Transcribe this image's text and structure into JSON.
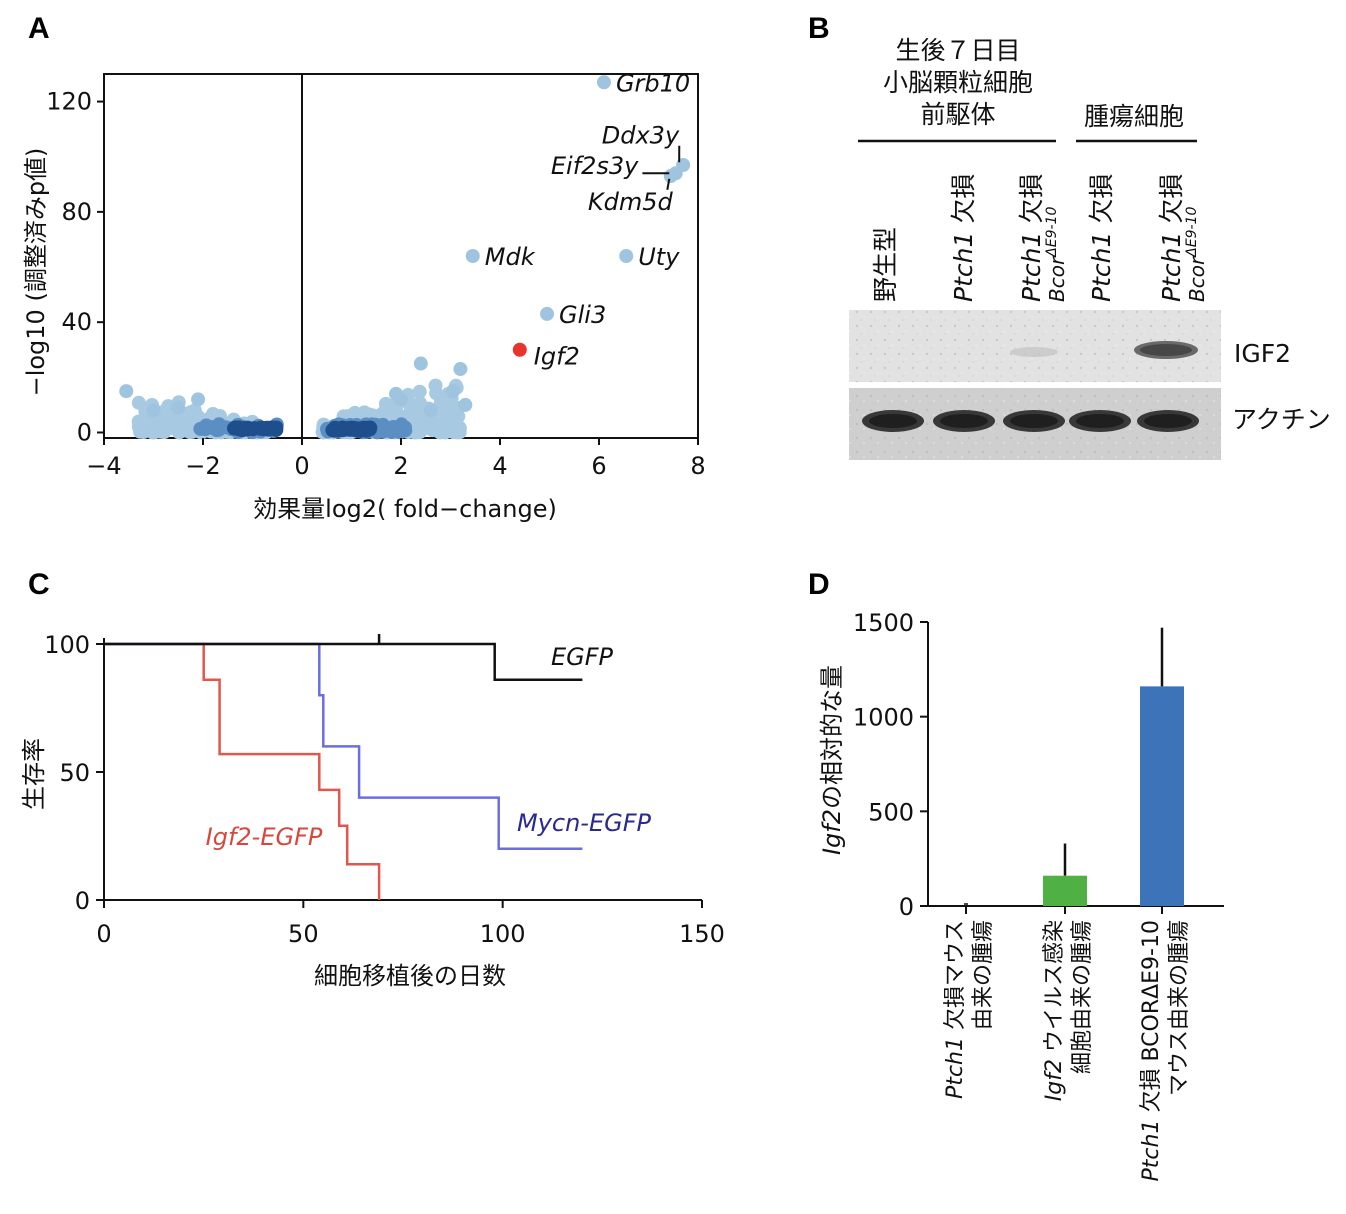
{
  "panels": {
    "A": {
      "letter": "A",
      "chart_data": {
        "type": "scatter",
        "xlabel": "効果量log2( fold−change)",
        "ylabel": "−log10 (調整済みp値)",
        "xlim": [
          -4,
          8.0
        ],
        "ylim": [
          -2,
          130
        ],
        "x_ticks": [
          -4,
          -2,
          0,
          2,
          4,
          6,
          8
        ],
        "x_tick_labels": [
          "−4",
          "−2",
          "0",
          "2",
          "4",
          "6",
          "8"
        ],
        "y_ticks": [
          0,
          40,
          80,
          120
        ],
        "y_tick_labels": [
          "0",
          "40",
          "80",
          "120"
        ],
        "labeled_points": [
          {
            "gene": "Grb10",
            "x": 6.1,
            "y": 127
          },
          {
            "gene": "Ddx3y",
            "x": 7.7,
            "y": 97
          },
          {
            "gene": "Eif2s3y",
            "x": 7.55,
            "y": 94
          },
          {
            "gene": "Kdm5d",
            "x": 7.45,
            "y": 93
          },
          {
            "gene": "Mdk",
            "x": 3.45,
            "y": 64
          },
          {
            "gene": "Uty",
            "x": 6.55,
            "y": 64
          },
          {
            "gene": "Gli3",
            "x": 4.95,
            "y": 43
          },
          {
            "gene": "Igf2",
            "x": 4.4,
            "y": 30,
            "highlight": true
          }
        ],
        "point_color": "#9fc4df",
        "dense_color": "#1f4e8c",
        "highlight_color": "#e8342c"
      }
    },
    "B": {
      "letter": "B",
      "header_group1": [
        "生後７日目",
        "小脳顆粒細胞",
        "前駆体"
      ],
      "header_group2": "腫瘍細胞",
      "lanes": [
        {
          "gene": "",
          "text": "野生型",
          "sup": ""
        },
        {
          "gene": "Ptch1",
          "text": " 欠損",
          "sup": ""
        },
        {
          "gene": "Ptch1",
          "text": " 欠損",
          "sup": "Bcor",
          "sup2": "ΔE9-10"
        },
        {
          "gene": "Ptch1",
          "text": " 欠損",
          "sup": ""
        },
        {
          "gene": "Ptch1",
          "text": " 欠損",
          "sup": "Bcor",
          "sup2": "ΔE9-10"
        }
      ],
      "blots": [
        "IGF2",
        "アクチン"
      ]
    },
    "C": {
      "letter": "C",
      "chart_data": {
        "type": "line",
        "xlabel": "細胞移植後の日数",
        "ylabel": "生存率",
        "xlim": [
          0,
          150
        ],
        "ylim": [
          0,
          100
        ],
        "x_ticks": [
          0,
          50,
          100,
          150
        ],
        "y_ticks": [
          0,
          50,
          100
        ],
        "series": [
          {
            "name": "EGFP",
            "color": "#111111",
            "steps": [
              [
                0,
                100
              ],
              [
                98,
                100
              ],
              [
                98,
                86
              ],
              [
                120,
                86
              ]
            ]
          },
          {
            "name": "Mycn-EGFP",
            "color": "#6a6ee0",
            "steps": [
              [
                0,
                100
              ],
              [
                54,
                100
              ],
              [
                54,
                80
              ],
              [
                55,
                80
              ],
              [
                55,
                60
              ],
              [
                64,
                60
              ],
              [
                64,
                40
              ],
              [
                99,
                40
              ],
              [
                99,
                20
              ],
              [
                120,
                20
              ]
            ]
          },
          {
            "name": "Igf2-EGFP",
            "color": "#e2574c",
            "steps": [
              [
                0,
                100
              ],
              [
                25,
                100
              ],
              [
                25,
                86
              ],
              [
                29,
                86
              ],
              [
                29,
                57
              ],
              [
                54,
                57
              ],
              [
                54,
                43
              ],
              [
                59,
                43
              ],
              [
                59,
                29
              ],
              [
                61,
                29
              ],
              [
                61,
                14
              ],
              [
                69,
                14
              ],
              [
                69,
                0
              ]
            ]
          }
        ],
        "censor_marks": [
          [
            69,
            100
          ]
        ]
      }
    },
    "D": {
      "letter": "D",
      "chart_data": {
        "type": "bar",
        "ylabel": "Igf2の相対的な量",
        "ylabel_gene": "Igf2",
        "ylabel_rest": "の相対的な量",
        "ylim": [
          0,
          1500
        ],
        "y_ticks": [
          0,
          500,
          1000,
          1500
        ],
        "categories": [
          {
            "lines": [
              [
                {
                  "t": "Ptch1",
                  "i": true
                },
                {
                  "t": " 欠損マウス",
                  "i": false
                }
              ],
              [
                {
                  "t": "由来の腫瘍",
                  "i": false
                }
              ]
            ]
          },
          {
            "lines": [
              [
                {
                  "t": "Igf2",
                  "i": true
                },
                {
                  "t": " ウイルス感染",
                  "i": false
                }
              ],
              [
                {
                  "t": "細胞由来の腫瘍",
                  "i": false
                }
              ]
            ]
          },
          {
            "lines": [
              [
                {
                  "t": "Ptch1",
                  "i": true
                },
                {
                  "t": " 欠損 BCORΔE9-10",
                  "i": false
                }
              ],
              [
                {
                  "t": "マウス由来の腫瘍",
                  "i": false
                }
              ]
            ]
          }
        ],
        "values": [
          0,
          160,
          1160
        ],
        "error": [
          0,
          170,
          310
        ],
        "colors": [
          "#4a4a4a",
          "#4fb043",
          "#3d73b8"
        ]
      }
    }
  }
}
